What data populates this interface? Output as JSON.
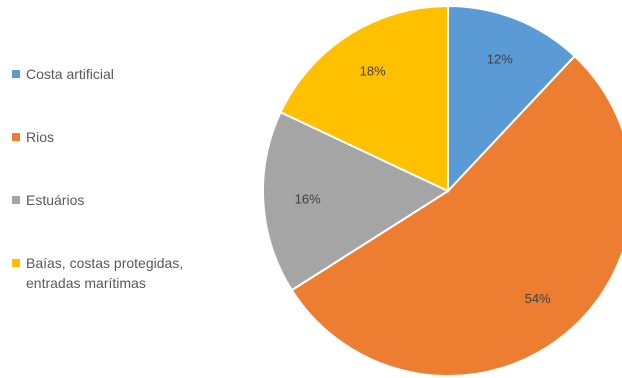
{
  "chart_data": {
    "type": "pie",
    "title": "",
    "start_angle_deg": 0,
    "direction": "clockwise",
    "slices": [
      {
        "label": "Costa artificial",
        "value": 12,
        "data_label": "12%",
        "color": "#5B9BD5"
      },
      {
        "label": "Rios",
        "value": 54,
        "data_label": "54%",
        "color": "#ED7D31"
      },
      {
        "label": "Estuários",
        "value": 16,
        "data_label": "16%",
        "color": "#A5A5A5"
      },
      {
        "label": "Baías, costas protegidas,\nentradas marítimas",
        "value": 18,
        "data_label": "18%",
        "color": "#FFC000"
      }
    ],
    "legend": {
      "position": "left"
    }
  }
}
